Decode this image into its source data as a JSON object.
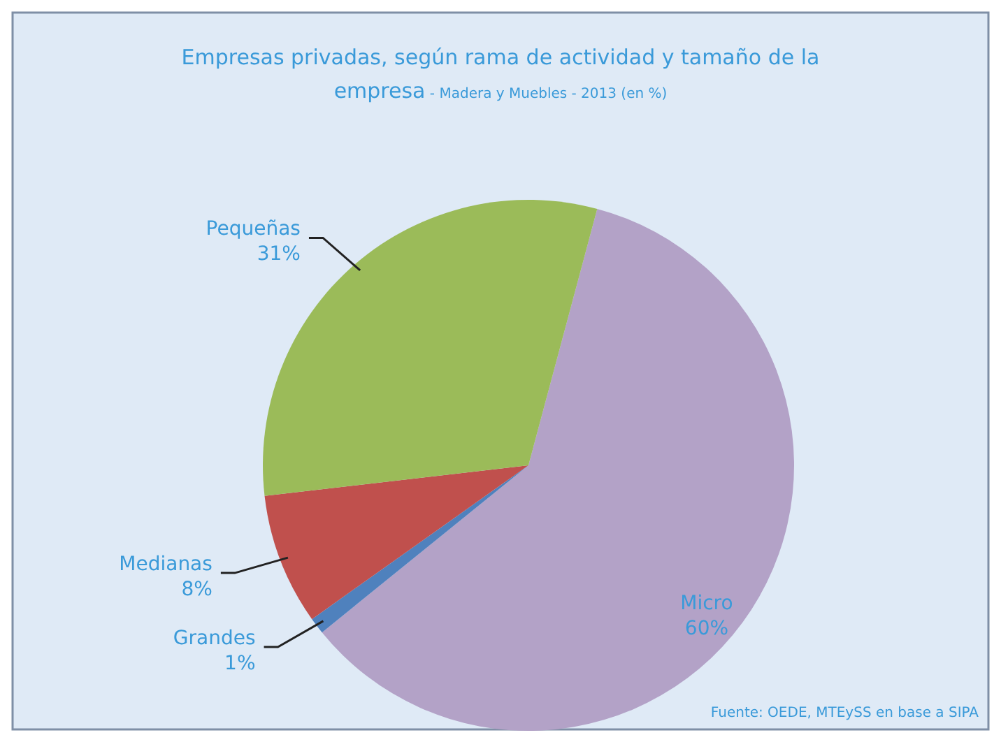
{
  "chart_data": {
    "type": "pie",
    "title": "Empresas privadas, según rama de actividad y tamaño de la empresa",
    "subtitle": "- Madera y Muebles - 2013 (en %)",
    "categories": [
      "Micro",
      "Grandes",
      "Medianas",
      "Pequeñas"
    ],
    "values": [
      60,
      1,
      8,
      31
    ],
    "colors": [
      "#b3a2c7",
      "#4f81bd",
      "#c0504d",
      "#9bbb59"
    ],
    "value_labels": [
      "60%",
      "1%",
      "8%",
      "31%"
    ],
    "annotations": [
      "Fuente: OEDE, MTEySS en base a SIPA"
    ]
  }
}
